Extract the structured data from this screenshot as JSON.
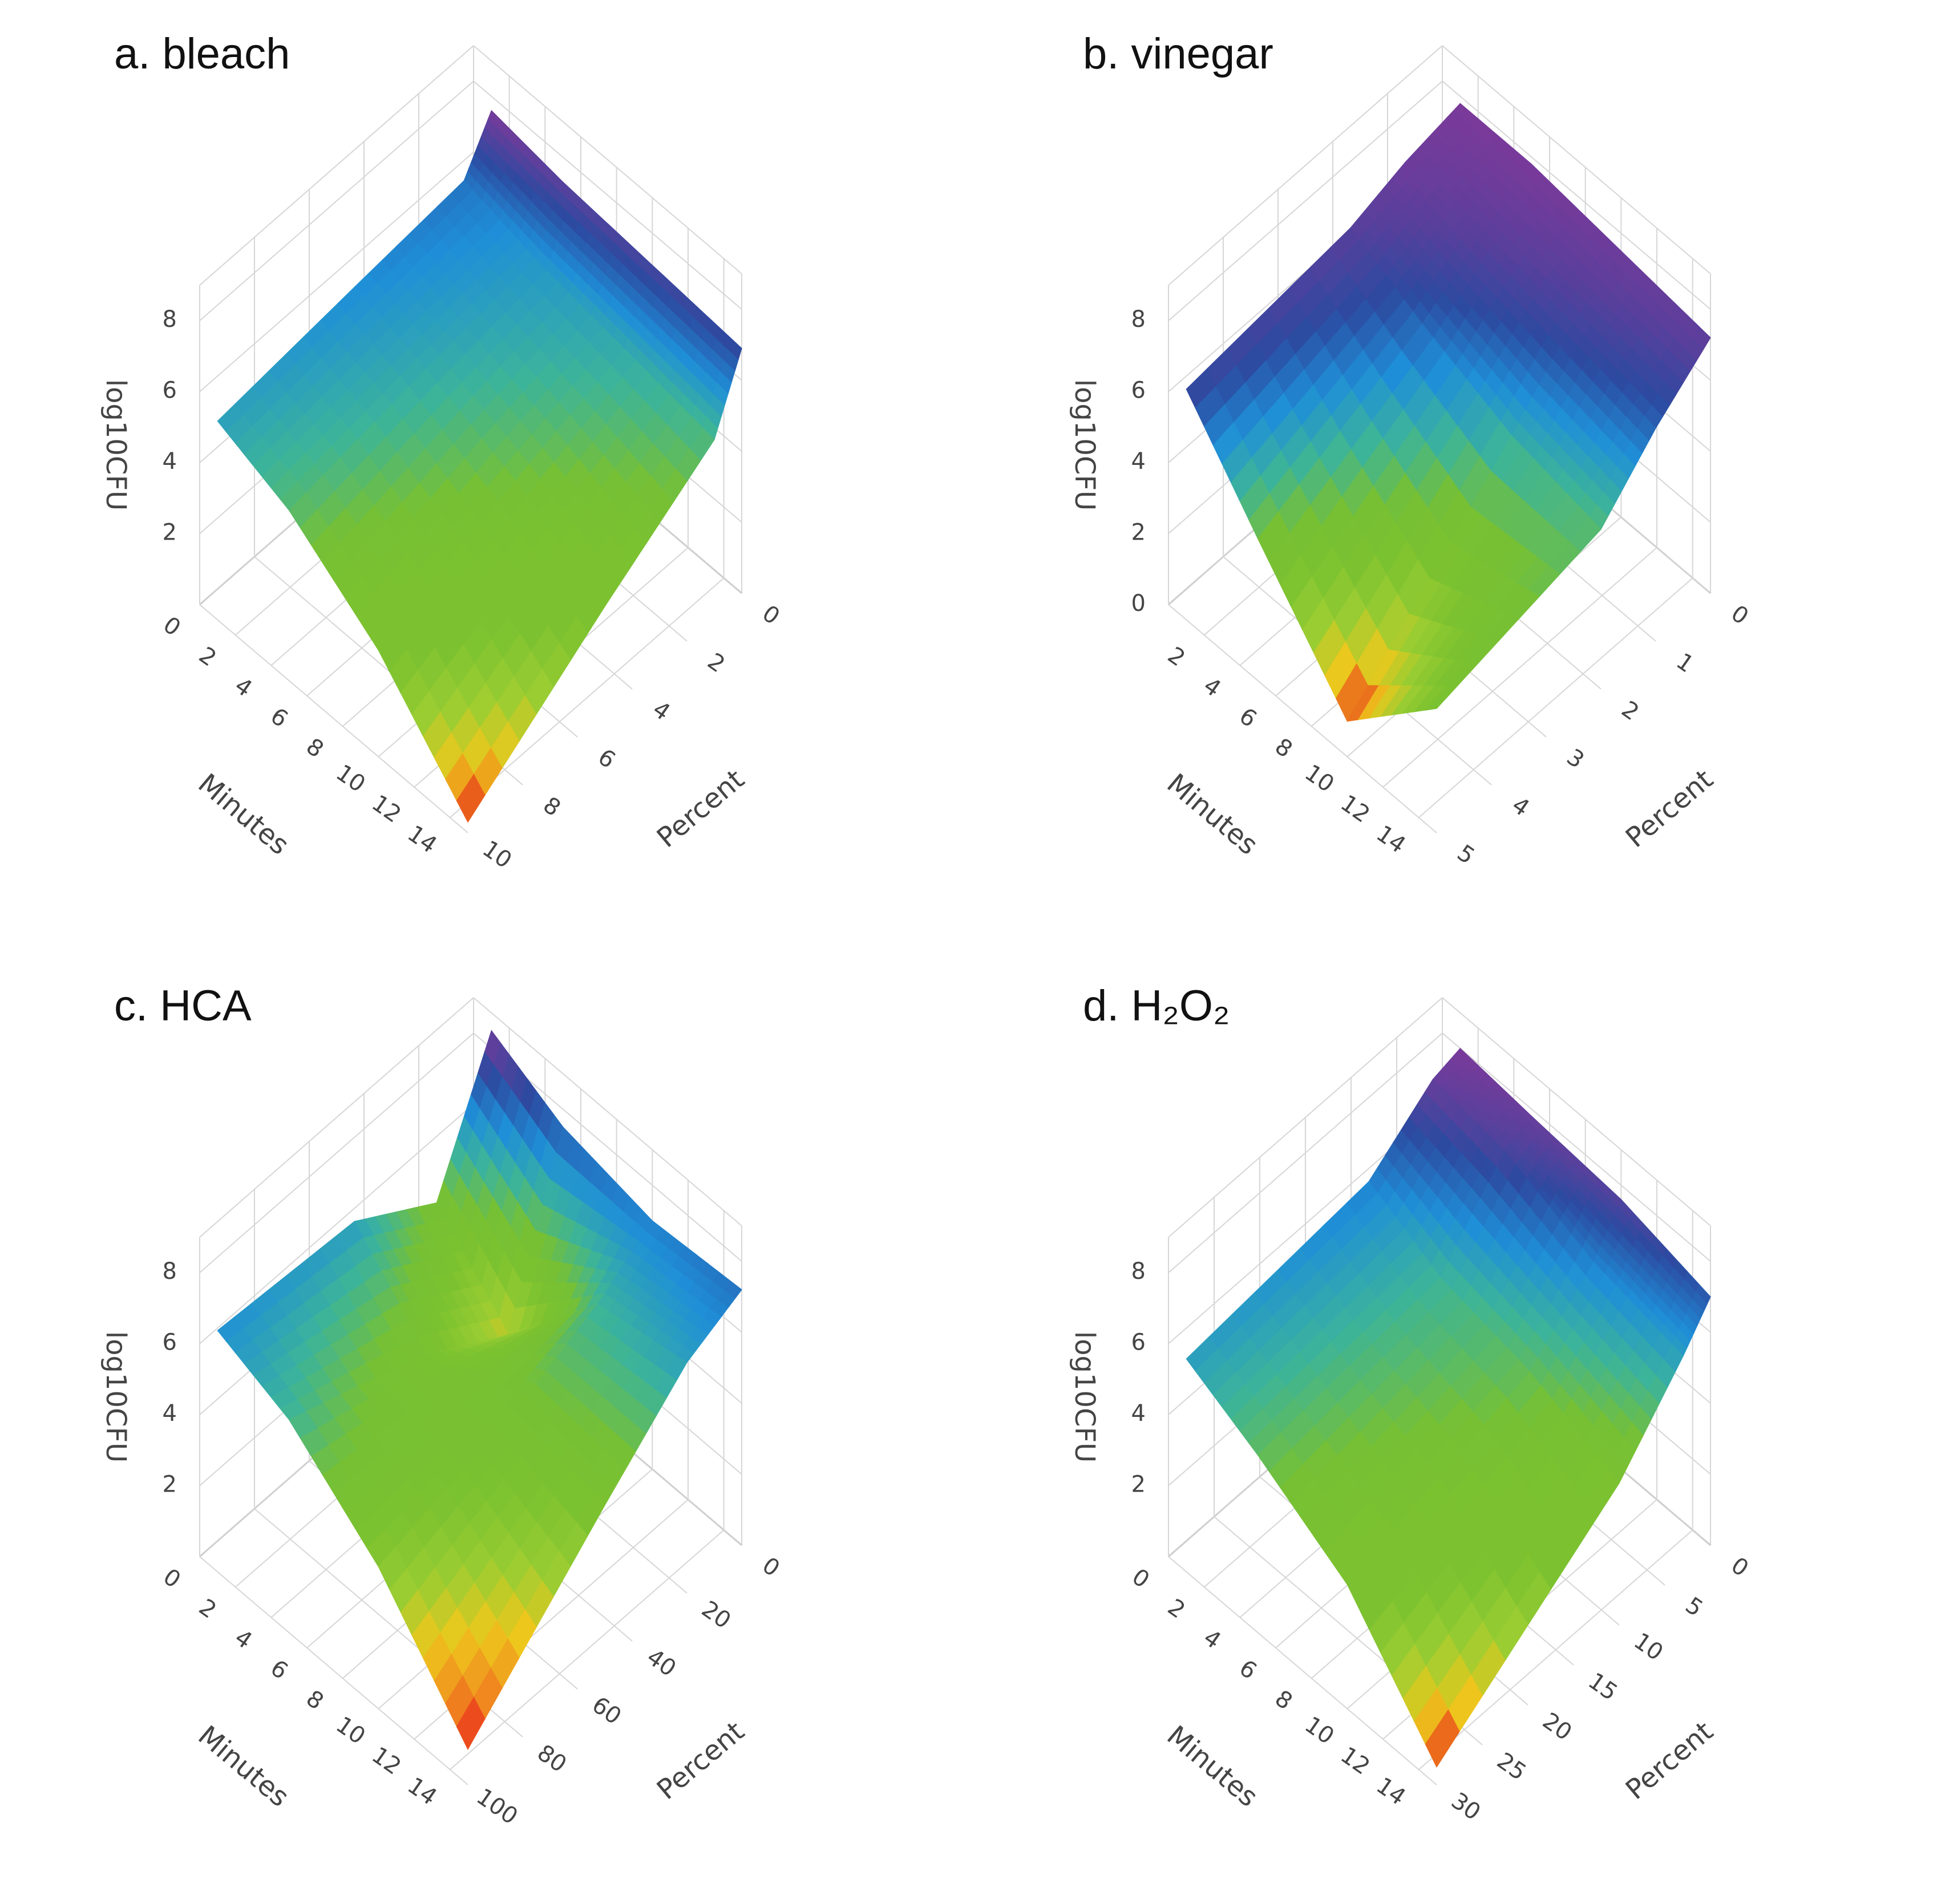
{
  "chart_data": [
    {
      "type": "surface",
      "title": "a. bleach",
      "xlabel": "Minutes",
      "ylabel": "Percent",
      "zlabel": "log10CFU",
      "x": [
        1,
        5,
        10,
        15
      ],
      "y": [
        0,
        1,
        5,
        10
      ],
      "z": [
        [
          7.6,
          6.3,
          6.0,
          5.6
        ],
        [
          7.3,
          5.8,
          5.4,
          4.8
        ],
        [
          7.1,
          5.4,
          4.4,
          3.0
        ],
        [
          6.9,
          5.0,
          3.0,
          0.3
        ]
      ],
      "xlim": [
        0,
        15
      ],
      "ylim": [
        0,
        10
      ],
      "zlim": [
        0,
        9
      ],
      "xticks": [
        0,
        2,
        4,
        6,
        8,
        10,
        12,
        14
      ],
      "yticks": [
        0,
        2,
        4,
        6,
        8,
        10
      ],
      "zticks": [
        2,
        4,
        6,
        8
      ],
      "colorscale": [
        "#e8141b",
        "#eec81c",
        "#9acd32",
        "#7cc230",
        "#7cc230",
        "#76c035",
        "#3cb49a",
        "#1f8fd8",
        "#2c4aa0",
        "#7a3a9a"
      ]
    },
    {
      "type": "surface",
      "title": "b. vinegar",
      "xlabel": "Minutes",
      "ylabel": "Percent",
      "zlabel": "log10CFU",
      "x": [
        1,
        5,
        10,
        15
      ],
      "y": [
        0,
        1,
        2,
        5
      ],
      "z": [
        [
          7.8,
          7.5,
          7.0,
          6.5
        ],
        [
          7.8,
          7.0,
          6.0,
          4.0
        ],
        [
          7.5,
          6.5,
          5.0,
          1.0
        ],
        [
          7.2,
          6.0,
          4.5,
          3.5
        ]
      ],
      "xlim": [
        0,
        15
      ],
      "ylim": [
        0,
        5
      ],
      "zlim": [
        0,
        9
      ],
      "xticks": [
        2,
        4,
        6,
        8,
        10,
        12,
        14
      ],
      "yticks": [
        0,
        1,
        2,
        3,
        4,
        5
      ],
      "zticks": [
        0,
        2,
        4,
        6,
        8
      ],
      "colorscale": [
        "#e8141b",
        "#eec81c",
        "#9acd32",
        "#7cc230",
        "#76c035",
        "#3cb49a",
        "#1f8fd8",
        "#2c4aa0",
        "#5a3f9c",
        "#7a3a9a"
      ]
    },
    {
      "type": "surface",
      "title": "c. HCA",
      "xlabel": "Minutes",
      "ylabel": "Percent",
      "zlabel": "log10CFU",
      "x": [
        1,
        5,
        10,
        15
      ],
      "y": [
        0,
        20,
        50,
        100
      ],
      "z": [
        [
          8.5,
          5.0,
          6.5,
          6.8
        ],
        [
          7.5,
          3.0,
          4.5,
          6.0
        ],
        [
          7.0,
          6.0,
          5.0,
          4.0
        ],
        [
          7.2,
          6.5,
          4.5,
          1.0
        ]
      ],
      "xlim": [
        0,
        15
      ],
      "ylim": [
        0,
        100
      ],
      "zlim": [
        0,
        9
      ],
      "xticks": [
        0,
        2,
        4,
        6,
        8,
        10,
        12,
        14
      ],
      "yticks": [
        0,
        20,
        40,
        60,
        80,
        100
      ],
      "zticks": [
        2,
        4,
        6,
        8
      ],
      "colorscale": [
        "#e8141b",
        "#f08a1f",
        "#eec81c",
        "#9acd32",
        "#7cc230",
        "#76c035",
        "#3cb49a",
        "#1f8fd8",
        "#2c4aa0",
        "#7a3a9a"
      ]
    },
    {
      "type": "surface",
      "title": "d. H₂O₂",
      "xlabel": "Minutes",
      "ylabel": "Percent",
      "zlabel": "log10CFU",
      "x": [
        1,
        5,
        10,
        15
      ],
      "y": [
        0,
        3,
        10,
        30
      ],
      "z": [
        [
          8.0,
          7.8,
          6.5,
          6.0
        ],
        [
          7.8,
          7.5,
          5.5,
          5.0
        ],
        [
          7.6,
          6.5,
          5.0,
          3.5
        ],
        [
          7.0,
          6.0,
          4.0,
          0.5
        ]
      ],
      "xlim": [
        0,
        15
      ],
      "ylim": [
        0,
        30
      ],
      "zlim": [
        0,
        9
      ],
      "xticks": [
        0,
        2,
        4,
        6,
        8,
        10,
        12,
        14
      ],
      "yticks": [
        0,
        5,
        10,
        15,
        20,
        25,
        30
      ],
      "zticks": [
        2,
        4,
        6,
        8
      ],
      "colorscale": [
        "#e8141b",
        "#eec81c",
        "#9acd32",
        "#7cc230",
        "#7cc230",
        "#76c035",
        "#3cb49a",
        "#1f8fd8",
        "#2c4aa0",
        "#7a3a9a"
      ]
    }
  ]
}
